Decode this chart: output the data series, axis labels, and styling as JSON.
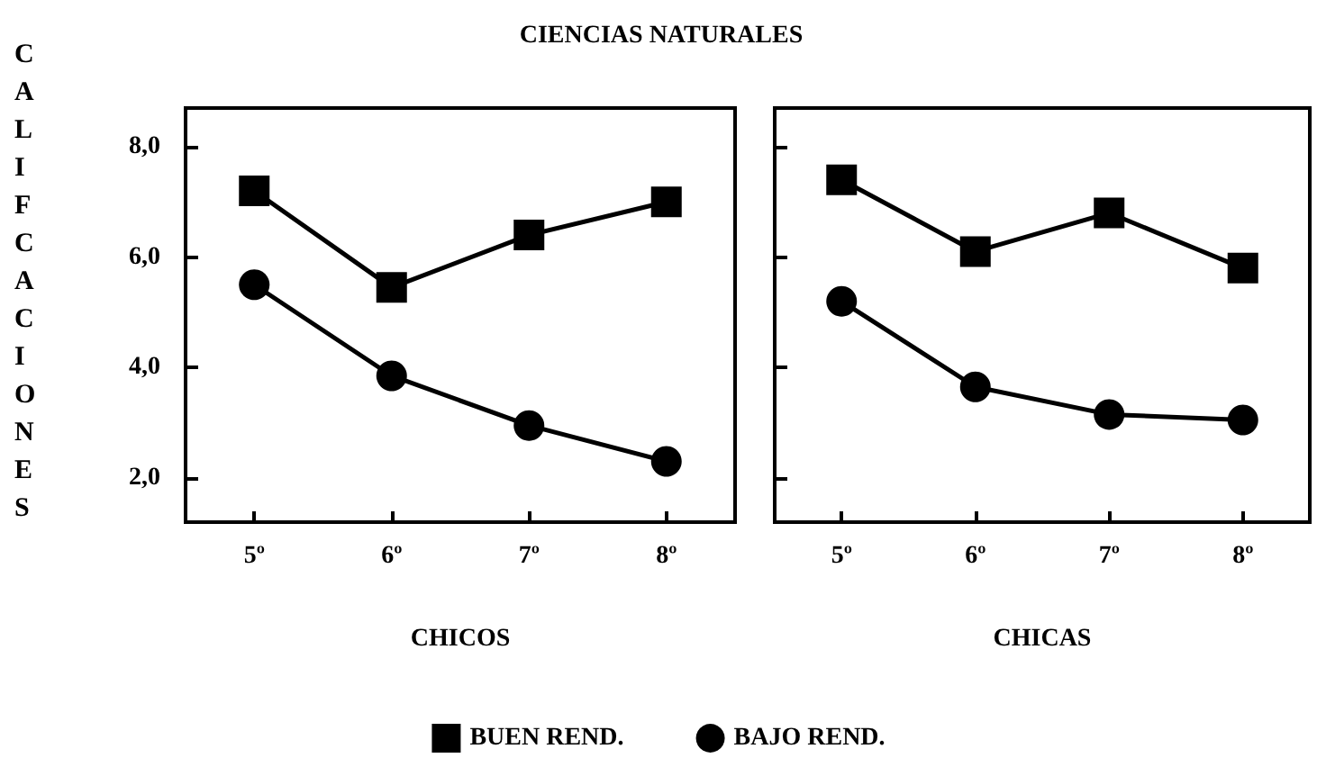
{
  "chart_data": [
    {
      "type": "line",
      "title": "CIENCIAS NATURALES",
      "ylabel": "CALIFCACIONES",
      "xlabel": "CHICOS",
      "categories": [
        "5º",
        "6º",
        "7º",
        "8º"
      ],
      "ylim": [
        1.2,
        8.7
      ],
      "yticks": [
        {
          "value": 2,
          "label": "2,0"
        },
        {
          "value": 4,
          "label": "4,0"
        },
        {
          "value": 6,
          "label": "6,0"
        },
        {
          "value": 8,
          "label": "8,0"
        }
      ],
      "grid": false,
      "legend": "bottom",
      "line_style": "solid",
      "series": [
        {
          "name": "BUEN REND.",
          "color": "#000000",
          "marker": "square",
          "values": [
            7.2,
            5.45,
            6.4,
            7.0
          ]
        },
        {
          "name": "BAJO REND.",
          "color": "#000000",
          "marker": "circle",
          "values": [
            5.5,
            3.85,
            2.95,
            2.3
          ]
        }
      ]
    },
    {
      "type": "line",
      "xlabel": "CHICAS",
      "categories": [
        "5º",
        "6º",
        "7º",
        "8º"
      ],
      "ylim": [
        1.2,
        8.7
      ],
      "yticks": [
        {
          "value": 2,
          "label": null
        },
        {
          "value": 4,
          "label": null
        },
        {
          "value": 6,
          "label": null
        },
        {
          "value": 8,
          "label": null
        }
      ],
      "grid": false,
      "tick_labels": "x",
      "line_style": "solid",
      "series": [
        {
          "color": "#000000",
          "marker": "square",
          "values": [
            7.4,
            6.1,
            6.8,
            5.8
          ]
        },
        {
          "color": "#000000",
          "marker": "circle",
          "values": [
            5.2,
            3.65,
            3.15,
            3.05
          ]
        }
      ]
    }
  ]
}
